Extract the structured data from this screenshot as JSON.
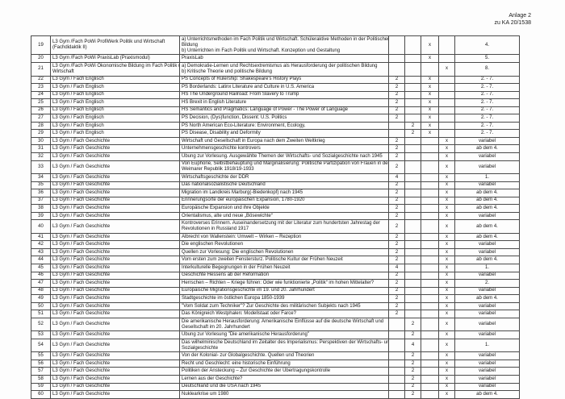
{
  "page": {
    "annotation_line1": "Anlage 2",
    "annotation_line2": "zu KA 20/1538"
  },
  "table": {
    "rows": [
      {
        "no": "19",
        "course": "L3 Gym /Fach PoWi ProfiWerk Politik und Wirtschaft\n(Fachdidaktik II)",
        "desc": "a) Unterrichtsmethoden im Fach Politik und Wirtschaft. Schüleraktive Methoden in der Politischen\nBildung\nb) Unterrichten im Fach Politik und Wirtschaft. Konzeption und Gestaltung",
        "hours_a": "",
        "hours_b": "",
        "mark_a": "x",
        "mark_b": "",
        "semester": "4."
      },
      {
        "no": "20",
        "course": "L3 Gym /Fach PoWi PraxisLab (Praxismodul)",
        "desc": "PraxisLab",
        "hours_a": "",
        "hours_b": "",
        "mark_a": "x",
        "mark_b": "",
        "semester": "5."
      },
      {
        "no": "21",
        "course": "L3 Gym /Fach PoWi Ökonomische Bildung im Fach Politik und\nWirtschaft",
        "desc": "a) Demokratie-Lernen und Rechtsextremismus als Herausforderung der politischen Bildung\nb) Kritische Theorie und politische Bildung",
        "hours_a": "",
        "hours_b": "",
        "mark_a": "",
        "mark_b": "x",
        "semester": "8."
      },
      {
        "no": "22",
        "course": "L3 Gym / Fach Englisch",
        "desc": "PS Concepts of Rulership: Shakespeare's History Plays",
        "hours_a": "2",
        "hours_b": "",
        "mark_a": "x",
        "mark_b": "",
        "semester": "2. - 7."
      },
      {
        "no": "23",
        "course": "L3 Gym / Fach Englisch",
        "desc": "PS Borderlands: Latinx Literature and Culture in U.S. America",
        "hours_a": "2",
        "hours_b": "",
        "mark_a": "x",
        "mark_b": "",
        "semester": "2. - 7."
      },
      {
        "no": "24",
        "course": "L3 Gym / Fach Englisch",
        "desc": "HS The Underground Railroad: From Slavery to Trump",
        "hours_a": "2",
        "hours_b": "",
        "mark_a": "x",
        "mark_b": "",
        "semester": "2. - 7."
      },
      {
        "no": "25",
        "course": "L3 Gym / Fach Englisch",
        "desc": "HS Brexit in English Literature",
        "hours_a": "2",
        "hours_b": "",
        "mark_a": "x",
        "mark_b": "",
        "semester": "2. - 7."
      },
      {
        "no": "26",
        "course": "L3 Gym / Fach Englisch",
        "desc": "HS Semantics and Pragmatics: Language of Power - The Power of Language",
        "hours_a": "2",
        "hours_b": "",
        "mark_a": "x",
        "mark_b": "",
        "semester": "2. - 7."
      },
      {
        "no": "27",
        "course": "L3 Gym / Fach Englisch",
        "desc": "PS Decision, (Dys)function, Dissent: U.S. Politics",
        "hours_a": "2",
        "hours_b": "",
        "mark_a": "x",
        "mark_b": "",
        "semester": "2. - 7."
      },
      {
        "no": "28",
        "course": "L3 Gym / Fach Englisch",
        "desc": "PS North American Eco-Literature: Environment, Ecology,",
        "hours_a": "",
        "hours_b": "2",
        "mark_a": "x",
        "mark_b": "",
        "semester": "2. - 7."
      },
      {
        "no": "29",
        "course": "L3 Gym / Fach Englisch",
        "desc": "PS Disease, Disability and Deformity",
        "hours_a": "",
        "hours_b": "2",
        "mark_a": "x",
        "mark_b": "",
        "semester": "2. - 7."
      },
      {
        "no": "30",
        "course": "L3 Gym / Fach Geschichte",
        "desc": "Wirtschaft und Gesellschaft in Europa nach dem Zweiten Weltkrieg",
        "hours_a": "2",
        "hours_b": "",
        "mark_a": "",
        "mark_b": "x",
        "semester": "variabel"
      },
      {
        "no": "31",
        "course": "L3 Gym / Fach Geschichte",
        "desc": "Unternehmensgeschichte kontrovers",
        "hours_a": "2",
        "hours_b": "",
        "mark_a": "",
        "mark_b": "x",
        "semester": "ab dem 4."
      },
      {
        "no": "32",
        "course": "L3 Gym / Fach Geschichte",
        "desc": "Übung zur Vorlesung. Ausgewählte Themen der Wirtschafts- und Sozialgeschichte nach 1945",
        "hours_a": "2",
        "hours_b": "",
        "mark_a": "",
        "mark_b": "x",
        "semester": "variabel"
      },
      {
        "no": "33",
        "course": "L3 Gym / Fach Geschichte",
        "desc": "Von Euphorie, Selbstbehauptung und Marginalisierung: Politische Partizipation von Frauen in der\nWeimarer Republik 1918/19-1933",
        "hours_a": "2",
        "hours_b": "",
        "mark_a": "",
        "mark_b": "x",
        "semester": "variabel"
      },
      {
        "no": "34",
        "course": "L3 Gym / Fach Geschichte",
        "desc": "Wirtschaftsgeschichte der DDR",
        "hours_a": "4",
        "hours_b": "",
        "mark_a": "",
        "mark_b": "x",
        "semester": "1."
      },
      {
        "no": "35",
        "course": "L3 Gym / Fach Geschichte",
        "desc": "Das nationalsozialistische Deutschland",
        "hours_a": "2",
        "hours_b": "",
        "mark_a": "",
        "mark_b": "x",
        "semester": "variabel"
      },
      {
        "no": "36",
        "course": "L3 Gym / Fach Geschichte",
        "desc": "Migration im Landkreis Marburg(-Biedenkopf) nach 1945",
        "hours_a": "2",
        "hours_b": "",
        "mark_a": "",
        "mark_b": "x",
        "semester": "ab dem 4."
      },
      {
        "no": "37",
        "course": "L3 Gym / Fach Geschichte",
        "desc": "Erinnerungsorte der europäischen Expansion, 1780-1920",
        "hours_a": "2",
        "hours_b": "",
        "mark_a": "",
        "mark_b": "x",
        "semester": "ab dem 4."
      },
      {
        "no": "38",
        "course": "L3 Gym / Fach Geschichte",
        "desc": "Europäische Expansion und ihre Objekte",
        "hours_a": "2",
        "hours_b": "",
        "mark_a": "",
        "mark_b": "x",
        "semester": "ab dem 4."
      },
      {
        "no": "39",
        "course": "L3 Gym / Fach Geschichte",
        "desc": "Orientalismus, alte und neue „Bösewichte“",
        "hours_a": "2",
        "hours_b": "",
        "mark_a": "",
        "mark_b": "x",
        "semester": "variabel"
      },
      {
        "no": "40",
        "course": "L3 Gym / Fach Geschichte",
        "desc": "Kontroverses Erinnern. Auseinandersetzung mit der Literatur zum hundertsten Jahrestag der\nRevolutionen in Russland 1917",
        "hours_a": "2",
        "hours_b": "",
        "mark_a": "",
        "mark_b": "x",
        "semester": "ab dem 4."
      },
      {
        "no": "41",
        "course": "L3 Gym / Fach Geschichte",
        "desc": "Albrecht von Wallenstein: Umwelt – Wirken – Rezeption",
        "hours_a": "2",
        "hours_b": "",
        "mark_a": "",
        "mark_b": "x",
        "semester": "ab dem 4."
      },
      {
        "no": "42",
        "course": "L3 Gym / Fach Geschichte",
        "desc": "Die englischen Revolutionen",
        "hours_a": "2",
        "hours_b": "",
        "mark_a": "",
        "mark_b": "x",
        "semester": "variabel"
      },
      {
        "no": "43",
        "course": "L3 Gym / Fach Geschichte",
        "desc": "Quellen zur Vorlesung: Die englischen Revolutionen",
        "hours_a": "2",
        "hours_b": "",
        "mark_a": "",
        "mark_b": "x",
        "semester": "variabel"
      },
      {
        "no": "44",
        "course": "L3 Gym / Fach Geschichte",
        "desc": "Vom ersten zum zweiten Fenstersturz. Politische Kultur der Frühen Neuzeit",
        "hours_a": "2",
        "hours_b": "",
        "mark_a": "",
        "mark_b": "x",
        "semester": "ab dem 4."
      },
      {
        "no": "45",
        "course": "L3 Gym / Fach Geschichte",
        "desc": "Interkulturelle Begegnungen in der Frühen Neuzeit",
        "hours_a": "4",
        "hours_b": "",
        "mark_a": "",
        "mark_b": "x",
        "semester": "1."
      },
      {
        "no": "46",
        "course": "L3 Gym / Fach Geschichte",
        "desc": "Geschichte Hessens ab der Reformation",
        "hours_a": "2",
        "hours_b": "",
        "mark_a": "",
        "mark_b": "x",
        "semester": "variabel"
      },
      {
        "no": "47",
        "course": "L3 Gym / Fach Geschichte",
        "desc": "Herrschen – Richten – Kriege führen: Oder wie funktionierte „Politik“ im hohen Mittelalter?",
        "hours_a": "2",
        "hours_b": "",
        "mark_a": "",
        "mark_b": "x",
        "semester": "2."
      },
      {
        "no": "48",
        "course": "L3 Gym / Fach Geschichte",
        "desc": "Europäische Migrationsgeschichte im 19. und 20. Jahrhundert",
        "hours_a": "2",
        "hours_b": "",
        "mark_a": "",
        "mark_b": "x",
        "semester": "variabel"
      },
      {
        "no": "49",
        "course": "L3 Gym / Fach Geschichte",
        "desc": "Stadtgeschichte im östlichen Europa 1850-1939",
        "hours_a": "2",
        "hours_b": "",
        "mark_a": "",
        "mark_b": "x",
        "semester": "ab dem 4."
      },
      {
        "no": "50",
        "course": "L3 Gym / Fach Geschichte",
        "desc": "\"Vom Soldat zum Techniker\"? Zur Geschichte des militärischen Subjekts nach 1945",
        "hours_a": "2",
        "hours_b": "",
        "mark_a": "",
        "mark_b": "x",
        "semester": "variabel"
      },
      {
        "no": "51",
        "course": "L3 Gym / Fach Geschichte",
        "desc": "Das Königreich Westphalen: Modellstaat oder Farce?",
        "hours_a": "2",
        "hours_b": "",
        "mark_a": "",
        "mark_b": "x",
        "semester": "variabel"
      },
      {
        "no": "52",
        "course": "L3 Gym / Fach Geschichte",
        "desc": "Die amerikanische Herausforderung: Amerikanische Einflüsse auf die deutsche Wirtschaft und\nGesellschaft im 20. Jahrhundert",
        "hours_a": "",
        "hours_b": "2",
        "mark_a": "",
        "mark_b": "x",
        "semester": "variabel"
      },
      {
        "no": "53",
        "course": "L3 Gym / Fach Geschichte",
        "desc": "Übung zur Vorlesung \"Die amerikanische Herausforderung\"",
        "hours_a": "",
        "hours_b": "2",
        "mark_a": "",
        "mark_b": "x",
        "semester": "variabel"
      },
      {
        "no": "54",
        "course": "L3 Gym / Fach Geschichte",
        "desc": "Das wilhelminische Deutschland im Zeitalter des Imperialismus: Perspektiven der Wirtschafts- und\nSozialgeschichte",
        "hours_a": "",
        "hours_b": "4",
        "mark_a": "",
        "mark_b": "x",
        "semester": "1."
      },
      {
        "no": "55",
        "course": "L3 Gym / Fach Geschichte",
        "desc": "Von der Kolonial- zur Globalgeschichte. Quellen und Theorien",
        "hours_a": "",
        "hours_b": "2",
        "mark_a": "",
        "mark_b": "x",
        "semester": "variabel"
      },
      {
        "no": "56",
        "course": "L3 Gym / Fach Geschichte",
        "desc": "Recht und Geschlecht: eine historische Einführung",
        "hours_a": "",
        "hours_b": "2",
        "mark_a": "",
        "mark_b": "x",
        "semester": "variabel"
      },
      {
        "no": "57",
        "course": "L3 Gym / Fach Geschichte",
        "desc": "Politiken der Ansteckung – Zur Geschichte der Übertragungskontrolle",
        "hours_a": "",
        "hours_b": "2",
        "mark_a": "",
        "mark_b": "x",
        "semester": "variabel"
      },
      {
        "no": "58",
        "course": "L3 Gym / Fach Geschichte",
        "desc": "Lernen aus der Geschichte?",
        "hours_a": "",
        "hours_b": "2",
        "mark_a": "",
        "mark_b": "x",
        "semester": "variabel"
      },
      {
        "no": "59",
        "course": "L3 Gym / Fach Geschichte",
        "desc": "Deutschland und die USA nach 1945",
        "hours_a": "",
        "hours_b": "2",
        "mark_a": "",
        "mark_b": "x",
        "semester": "variabel"
      },
      {
        "no": "60",
        "course": "L3 Gym / Fach Geschichte",
        "desc": "Nuklearkrise um 1980",
        "hours_a": "",
        "hours_b": "2",
        "mark_a": "",
        "mark_b": "x",
        "semester": "ab dem 4."
      }
    ]
  }
}
